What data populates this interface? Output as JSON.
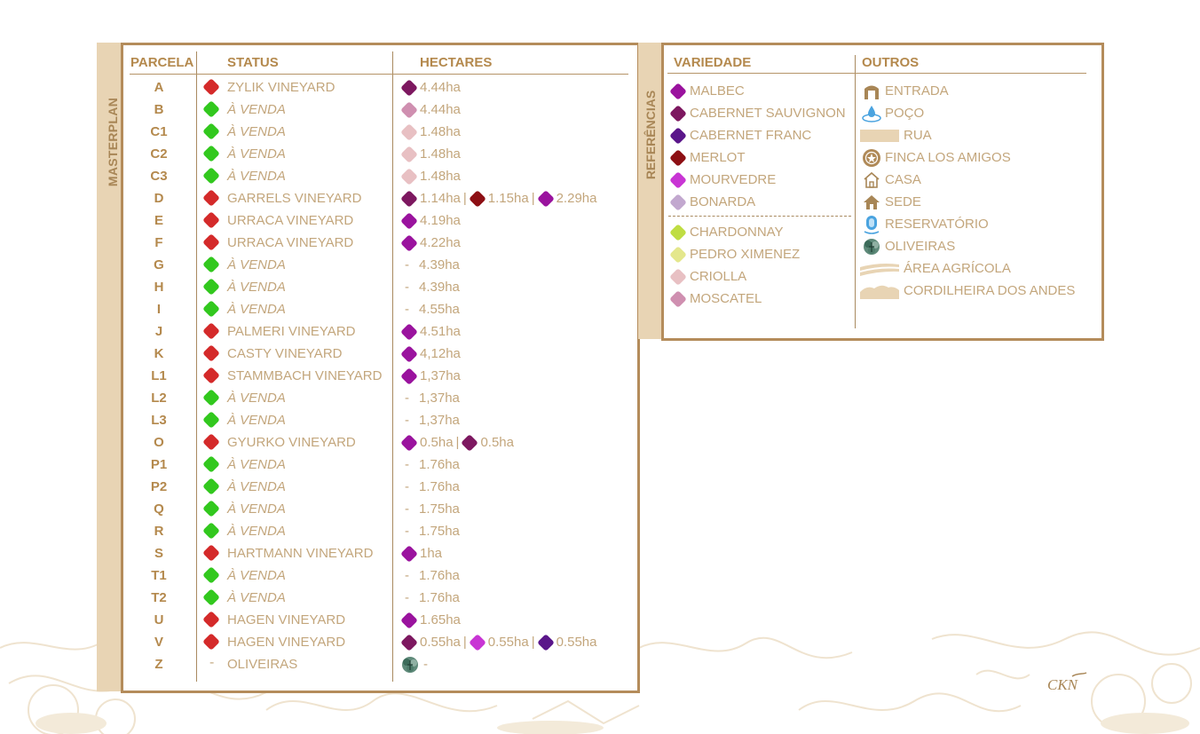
{
  "colors": {
    "sold": "#d42a2a",
    "for_sale": "#32c81e",
    "malbec": "#9a139e",
    "cabernet_sauvignon": "#7d1860",
    "cabernet_franc": "#5a168a",
    "merlot": "#8d0f14",
    "mourvedre": "#c835d4",
    "bonarda": "#c2a8cf",
    "chardonnay": "#bfdd43",
    "pedro_ximenez": "#e4e78c",
    "criolla": "#e8c0c3",
    "moscatel": "#cf8fb0"
  },
  "masterplan": {
    "tab_label": "MASTERPLAN",
    "headers": {
      "parcela": "PARCELA",
      "status": "STATUS",
      "hectares": "HECTARES"
    },
    "rows": [
      {
        "parcela": "A",
        "status": "ZYLIK VINEYARD",
        "state": "sold",
        "ha": [
          {
            "color": "cabernet_sauvignon",
            "text": "4.44ha"
          }
        ]
      },
      {
        "parcela": "B",
        "status": "À VENDA",
        "state": "for_sale",
        "ha": [
          {
            "color": "moscatel",
            "text": "4.44ha"
          }
        ]
      },
      {
        "parcela": "C1",
        "status": "À VENDA",
        "state": "for_sale",
        "ha": [
          {
            "color": "criolla",
            "text": "1.48ha"
          }
        ]
      },
      {
        "parcela": "C2",
        "status": "À VENDA",
        "state": "for_sale",
        "ha": [
          {
            "color": "criolla",
            "text": "1.48ha"
          }
        ]
      },
      {
        "parcela": "C3",
        "status": "À VENDA",
        "state": "for_sale",
        "ha": [
          {
            "color": "criolla",
            "text": "1.48ha"
          }
        ]
      },
      {
        "parcela": "D",
        "status": "GARRELS VINEYARD",
        "state": "sold",
        "ha": [
          {
            "color": "cabernet_sauvignon",
            "text": "1.14ha"
          },
          {
            "color": "merlot",
            "text": "1.15ha"
          },
          {
            "color": "malbec",
            "text": "2.29ha"
          }
        ]
      },
      {
        "parcela": "E",
        "status": "URRACA VINEYARD",
        "state": "sold",
        "ha": [
          {
            "color": "malbec",
            "text": "4.19ha"
          }
        ]
      },
      {
        "parcela": "F",
        "status": "URRACA VINEYARD",
        "state": "sold",
        "ha": [
          {
            "color": "malbec",
            "text": "4.22ha"
          }
        ]
      },
      {
        "parcela": "G",
        "status": "À VENDA",
        "state": "for_sale",
        "ha": [
          {
            "color": "",
            "text": "4.39ha"
          }
        ]
      },
      {
        "parcela": "H",
        "status": "À VENDA",
        "state": "for_sale",
        "ha": [
          {
            "color": "",
            "text": "4.39ha"
          }
        ]
      },
      {
        "parcela": "I",
        "status": "À VENDA",
        "state": "for_sale",
        "ha": [
          {
            "color": "",
            "text": "4.55ha"
          }
        ]
      },
      {
        "parcela": "J",
        "status": "PALMERI VINEYARD",
        "state": "sold",
        "ha": [
          {
            "color": "malbec",
            "text": "4.51ha"
          }
        ]
      },
      {
        "parcela": "K",
        "status": "CASTY VINEYARD",
        "state": "sold",
        "ha": [
          {
            "color": "malbec",
            "text": "4,12ha"
          }
        ]
      },
      {
        "parcela": "L1",
        "status": "STAMMBACH VINEYARD",
        "state": "sold",
        "ha": [
          {
            "color": "malbec",
            "text": "1,37ha"
          }
        ]
      },
      {
        "parcela": "L2",
        "status": "À VENDA",
        "state": "for_sale",
        "ha": [
          {
            "color": "",
            "text": "1,37ha"
          }
        ]
      },
      {
        "parcela": "L3",
        "status": "À VENDA",
        "state": "for_sale",
        "ha": [
          {
            "color": "",
            "text": "1,37ha"
          }
        ]
      },
      {
        "parcela": "O",
        "status": "GYURKO VINEYARD",
        "state": "sold",
        "ha": [
          {
            "color": "malbec",
            "text": "0.5ha"
          },
          {
            "color": "cabernet_sauvignon",
            "text": "0.5ha"
          }
        ]
      },
      {
        "parcela": "P1",
        "status": "À VENDA",
        "state": "for_sale",
        "ha": [
          {
            "color": "",
            "text": "1.76ha"
          }
        ]
      },
      {
        "parcela": "P2",
        "status": "À VENDA",
        "state": "for_sale",
        "ha": [
          {
            "color": "",
            "text": "1.76ha"
          }
        ]
      },
      {
        "parcela": "Q",
        "status": "À VENDA",
        "state": "for_sale",
        "ha": [
          {
            "color": "",
            "text": "1.75ha"
          }
        ]
      },
      {
        "parcela": "R",
        "status": "À VENDA",
        "state": "for_sale",
        "ha": [
          {
            "color": "",
            "text": "1.75ha"
          }
        ]
      },
      {
        "parcela": "S",
        "status": "HARTMANN VINEYARD",
        "state": "sold",
        "ha": [
          {
            "color": "malbec",
            "text": "1ha"
          }
        ]
      },
      {
        "parcela": "T1",
        "status": "À VENDA",
        "state": "for_sale",
        "ha": [
          {
            "color": "",
            "text": "1.76ha"
          }
        ]
      },
      {
        "parcela": "T2",
        "status": "À VENDA",
        "state": "for_sale",
        "ha": [
          {
            "color": "",
            "text": "1.76ha"
          }
        ]
      },
      {
        "parcela": "U",
        "status": "HAGEN VINEYARD",
        "state": "sold",
        "ha": [
          {
            "color": "malbec",
            "text": "1.65ha"
          }
        ]
      },
      {
        "parcela": "V",
        "status": "HAGEN VINEYARD",
        "state": "sold",
        "ha": [
          {
            "color": "cabernet_sauvignon",
            "text": "0.55ha"
          },
          {
            "color": "mourvedre",
            "text": "0.55ha"
          },
          {
            "color": "cabernet_franc",
            "text": "0.55ha"
          }
        ]
      },
      {
        "parcela": "Z",
        "status": "OLIVEIRAS",
        "state": "none",
        "ha": [
          {
            "color": "olive",
            "text": "-"
          }
        ]
      }
    ]
  },
  "referencias": {
    "tab_label": "REFERÊNCIAS",
    "headers": {
      "variedade": "VARIEDADE",
      "outros": "OUTROS"
    },
    "red_varieties": [
      {
        "label": "MALBEC",
        "color": "malbec"
      },
      {
        "label": "CABERNET SAUVIGNON",
        "color": "cabernet_sauvignon"
      },
      {
        "label": "CABERNET FRANC",
        "color": "cabernet_franc"
      },
      {
        "label": "MERLOT",
        "color": "merlot"
      },
      {
        "label": "MOURVEDRE",
        "color": "mourvedre"
      },
      {
        "label": "BONARDA",
        "color": "bonarda"
      }
    ],
    "white_varieties": [
      {
        "label": "CHARDONNAY",
        "color": "chardonnay"
      },
      {
        "label": "PEDRO XIMENEZ",
        "color": "pedro_ximenez"
      },
      {
        "label": "CRIOLLA",
        "color": "criolla"
      },
      {
        "label": "MOSCATEL",
        "color": "moscatel"
      }
    ],
    "outros": [
      {
        "label": "ENTRADA",
        "icon": "gate-icon"
      },
      {
        "label": "POÇO",
        "icon": "well-drop-icon"
      },
      {
        "label": "RUA",
        "icon": "road-bar-icon"
      },
      {
        "label": "FINCA LOS AMIGOS",
        "icon": "seal-icon"
      },
      {
        "label": "CASA",
        "icon": "house-outline-icon"
      },
      {
        "label": "SEDE",
        "icon": "house-filled-icon"
      },
      {
        "label": "RESERVATÓRIO",
        "icon": "reservoir-icon"
      },
      {
        "label": "OLIVEIRAS",
        "icon": "olive-tree-icon"
      },
      {
        "label": "ÁREA AGRÍCOLA",
        "icon": "field-icon"
      },
      {
        "label": "CORDILHEIRA DOS ANDES",
        "icon": "mountain-icon"
      }
    ]
  },
  "logo_text": "CKN"
}
